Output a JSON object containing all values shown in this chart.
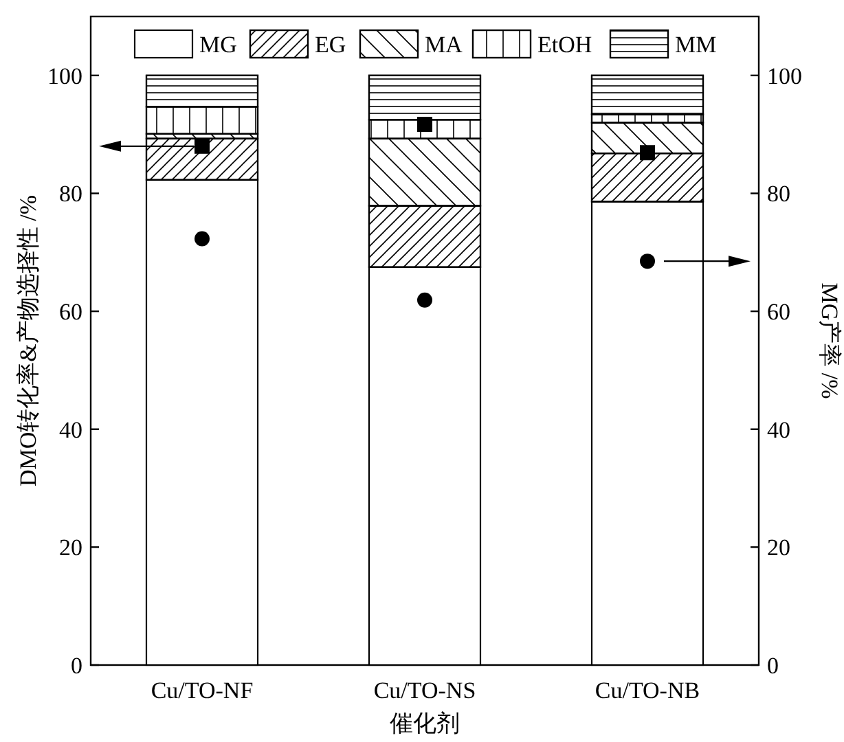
{
  "chart_data": {
    "type": "bar",
    "stacked": true,
    "categories": [
      "Cu/TO-NF",
      "Cu/TO-NS",
      "Cu/TO-NB"
    ],
    "xlabel": "催化剂",
    "ylabel": "DMO转化率&产物选择性 /%",
    "y2label": "MG产率 /%",
    "ylim": [
      0,
      110
    ],
    "yticks": [
      0,
      20,
      40,
      60,
      80,
      100
    ],
    "y2lim": [
      0,
      110
    ],
    "y2ticks": [
      0,
      20,
      40,
      60,
      80,
      100
    ],
    "legend": "top",
    "series": [
      {
        "name": "MG",
        "color": "#ffffff",
        "values": [
          82.3,
          67.5,
          78.6
        ]
      },
      {
        "name": "EG",
        "color": "#ffffff",
        "values": [
          7.0,
          10.4,
          8.2
        ]
      },
      {
        "name": "MA",
        "color": "#ffffff",
        "values": [
          0.8,
          11.4,
          5.2
        ]
      },
      {
        "name": "EtOH",
        "color": "#ffffff",
        "values": [
          4.6,
          3.2,
          1.4
        ]
      },
      {
        "name": "MM",
        "color": "#ffffff",
        "values": [
          5.3,
          7.5,
          6.6
        ]
      },
      {
        "type": "scatter",
        "marker": "square",
        "color": "#000000",
        "x": [
          "Cu/TO-NF",
          "Cu/TO-NS",
          "Cu/TO-NB"
        ],
        "values": [
          88.0,
          91.7,
          86.9
        ]
      },
      {
        "type": "scatter",
        "marker": "circle",
        "axis": "y2",
        "color": "#000000",
        "x": [
          "Cu/TO-NF",
          "Cu/TO-NS",
          "Cu/TO-NB"
        ],
        "values": [
          72.3,
          61.9,
          68.5
        ]
      }
    ]
  }
}
